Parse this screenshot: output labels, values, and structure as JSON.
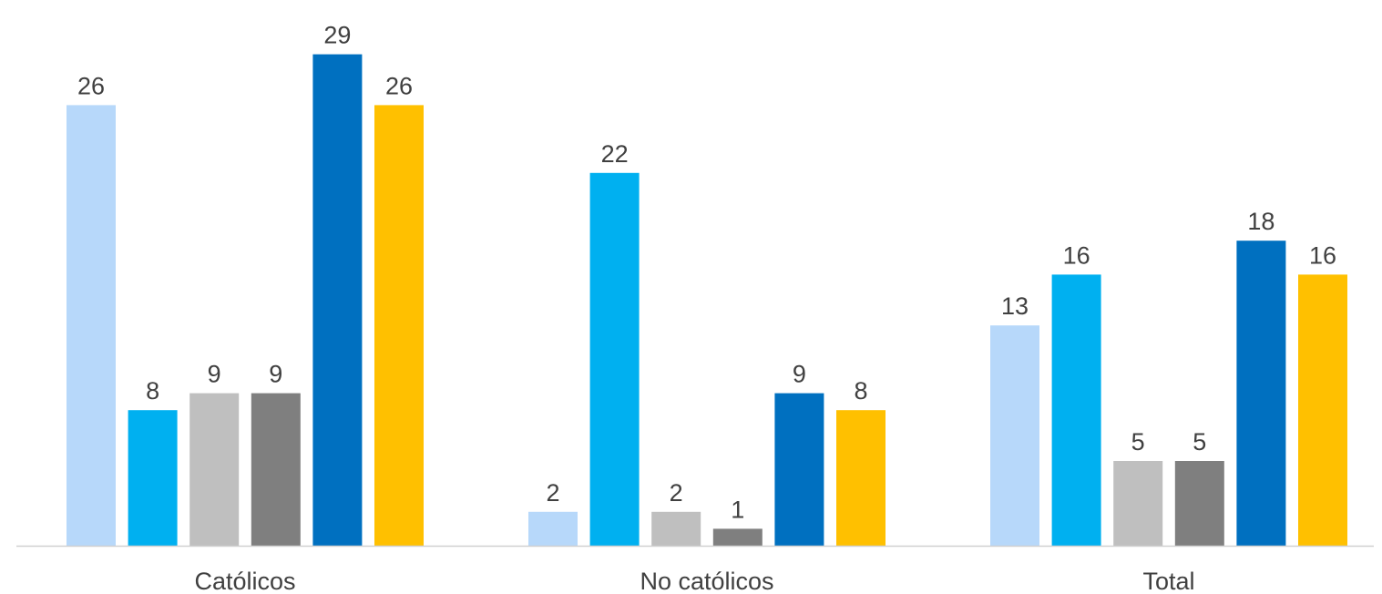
{
  "chart_data": {
    "type": "bar",
    "categories": [
      "Católicos",
      "No católicos",
      "Total"
    ],
    "series": [
      {
        "color": "#b7d8fa",
        "values": [
          26,
          2,
          13
        ]
      },
      {
        "color": "#00b0f0",
        "values": [
          8,
          22,
          16
        ]
      },
      {
        "color": "#bfbfbf",
        "values": [
          9,
          2,
          5
        ]
      },
      {
        "color": "#7f7f7f",
        "values": [
          9,
          1,
          5
        ]
      },
      {
        "color": "#0070c0",
        "values": [
          29,
          9,
          18
        ]
      },
      {
        "color": "#ffc000",
        "values": [
          26,
          8,
          16
        ]
      }
    ],
    "ylim": [
      0,
      29.3
    ],
    "grid": false,
    "legend": "none",
    "data_labels": true
  }
}
